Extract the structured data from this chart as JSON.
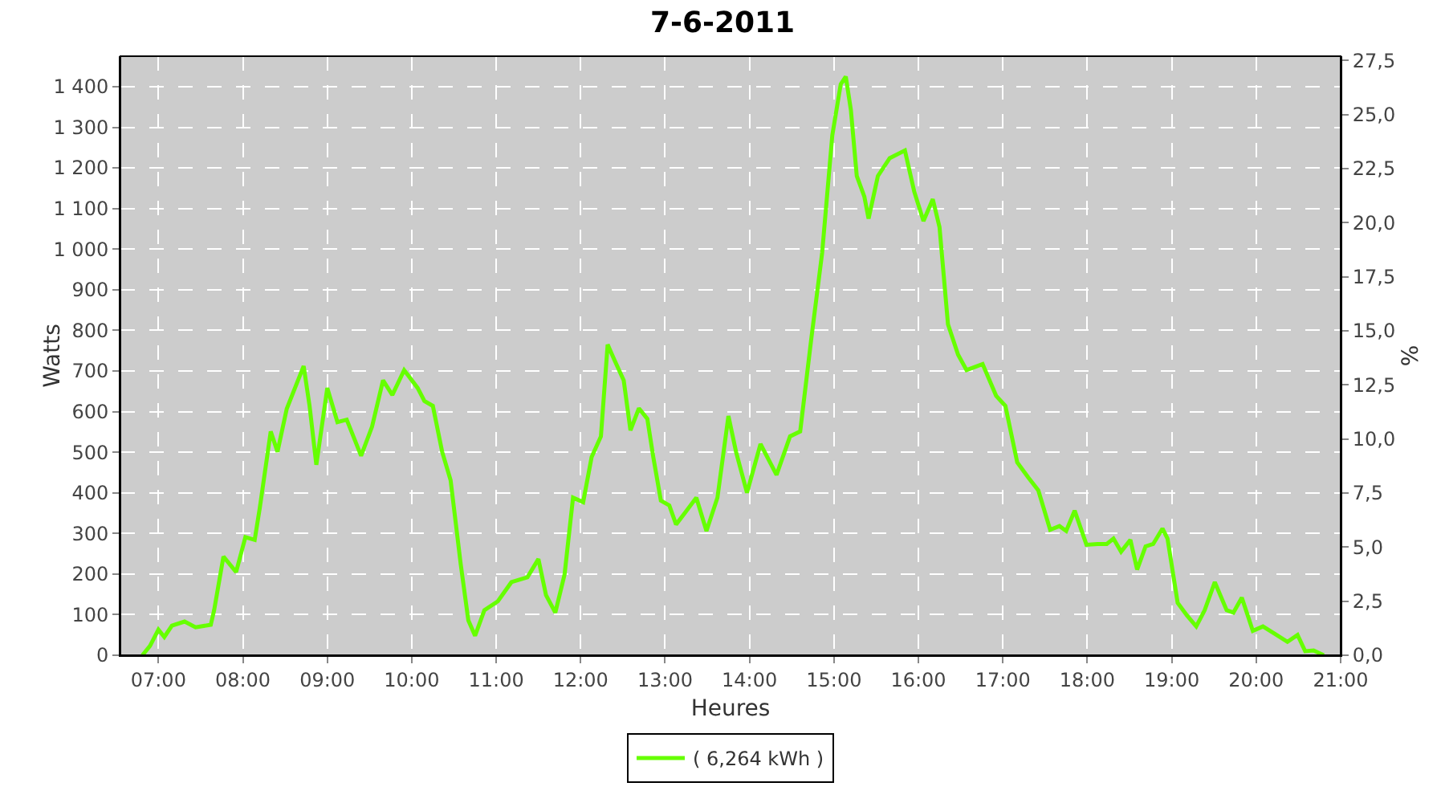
{
  "chart_data": {
    "type": "line",
    "title": "7-6-2011",
    "xlabel": "Heures",
    "ylabel": "Watts",
    "y2label": "%",
    "xlim": [
      6.55,
      21.0
    ],
    "xticks": [
      {
        "value": 7,
        "label": "07:00"
      },
      {
        "value": 8,
        "label": "08:00"
      },
      {
        "value": 9,
        "label": "09:00"
      },
      {
        "value": 10,
        "label": "10:00"
      },
      {
        "value": 11,
        "label": "11:00"
      },
      {
        "value": 12,
        "label": "12:00"
      },
      {
        "value": 13,
        "label": "13:00"
      },
      {
        "value": 14,
        "label": "14:00"
      },
      {
        "value": 15,
        "label": "15:00"
      },
      {
        "value": 16,
        "label": "16:00"
      },
      {
        "value": 17,
        "label": "17:00"
      },
      {
        "value": 18,
        "label": "18:00"
      },
      {
        "value": 19,
        "label": "19:00"
      },
      {
        "value": 20,
        "label": "20:00"
      },
      {
        "value": 21,
        "label": "21:00"
      }
    ],
    "ylim": [
      0,
      1475
    ],
    "yticks": [
      0,
      100,
      200,
      300,
      400,
      500,
      600,
      700,
      800,
      900,
      {
        "value": 1000,
        "label": "1 000"
      },
      {
        "value": 1100,
        "label": "1 100"
      },
      {
        "value": 1200,
        "label": "1 200"
      },
      {
        "value": 1300,
        "label": "1 300"
      },
      {
        "value": 1400,
        "label": "1 400"
      }
    ],
    "y2lim": [
      0,
      27.7
    ],
    "y2ticks": [
      {
        "value": 0,
        "label": "0,0"
      },
      {
        "value": 2.5,
        "label": "2,5"
      },
      {
        "value": 5,
        "label": "5,0"
      },
      {
        "value": 7.5,
        "label": "7,5"
      },
      {
        "value": 10,
        "label": "10,0"
      },
      {
        "value": 12.5,
        "label": "12,5"
      },
      {
        "value": 15,
        "label": "15,0"
      },
      {
        "value": 17.5,
        "label": "17,5"
      },
      {
        "value": 20,
        "label": "20,0"
      },
      {
        "value": 22.5,
        "label": "22,5"
      },
      {
        "value": 25,
        "label": "25,0"
      },
      {
        "value": 27.5,
        "label": "27,5"
      }
    ],
    "grid": true,
    "legend": "bottom",
    "marker": "none",
    "line_style": "solid",
    "series": [
      {
        "name": "( 6,264 kWh )",
        "color": "#66ff00",
        "x": [
          6.81,
          6.9,
          7.0,
          7.07,
          7.16,
          7.31,
          7.44,
          7.62,
          7.66,
          7.77,
          7.92,
          8.03,
          8.14,
          8.2,
          8.33,
          8.41,
          8.52,
          8.64,
          8.72,
          8.79,
          8.87,
          9.0,
          9.12,
          9.23,
          9.4,
          9.53,
          9.66,
          9.77,
          9.91,
          10.07,
          10.15,
          10.25,
          10.36,
          10.46,
          10.58,
          10.67,
          10.75,
          10.86,
          11.02,
          11.18,
          11.37,
          11.5,
          11.59,
          11.7,
          11.81,
          11.91,
          12.03,
          12.13,
          12.24,
          12.32,
          12.4,
          12.51,
          12.59,
          12.69,
          12.79,
          12.86,
          12.95,
          13.05,
          13.13,
          13.24,
          13.37,
          13.49,
          13.62,
          13.75,
          13.84,
          13.97,
          14.13,
          14.32,
          14.48,
          14.6,
          14.73,
          14.86,
          14.98,
          15.08,
          15.14,
          15.2,
          15.27,
          15.36,
          15.41,
          15.52,
          15.66,
          15.84,
          15.95,
          16.06,
          16.17,
          16.25,
          16.35,
          16.47,
          16.57,
          16.76,
          16.92,
          17.03,
          17.17,
          17.3,
          17.42,
          17.56,
          17.67,
          17.75,
          17.85,
          17.99,
          18.12,
          18.23,
          18.31,
          18.4,
          18.51,
          18.59,
          18.69,
          18.78,
          18.89,
          18.95,
          19.07,
          19.18,
          19.29,
          19.39,
          19.51,
          19.65,
          19.73,
          19.83,
          19.96,
          20.08,
          20.21,
          20.37,
          20.49,
          20.58,
          20.68,
          20.8
        ],
        "values": [
          0,
          23,
          63,
          45,
          73,
          83,
          69,
          75,
          111,
          243,
          205,
          291,
          284,
          362,
          551,
          501,
          607,
          670,
          712,
          614,
          469,
          658,
          574,
          580,
          491,
          563,
          677,
          641,
          702,
          658,
          626,
          614,
          501,
          431,
          224,
          86,
          48,
          111,
          133,
          180,
          192,
          237,
          148,
          105,
          199,
          388,
          377,
          488,
          539,
          765,
          727,
          677,
          554,
          608,
          582,
          488,
          381,
          369,
          322,
          352,
          388,
          306,
          388,
          589,
          501,
          400,
          520,
          444,
          539,
          551,
          777,
          991,
          1280,
          1406,
          1425,
          1343,
          1180,
          1129,
          1075,
          1180,
          1224,
          1243,
          1142,
          1069,
          1123,
          1054,
          815,
          740,
          702,
          717,
          639,
          614,
          475,
          438,
          406,
          309,
          318,
          306,
          356,
          272,
          274,
          274,
          287,
          255,
          284,
          211,
          268,
          274,
          312,
          287,
          129,
          98,
          71,
          111,
          180,
          111,
          105,
          142,
          60,
          71,
          54,
          33,
          50,
          10,
          12,
          0
        ]
      }
    ]
  }
}
